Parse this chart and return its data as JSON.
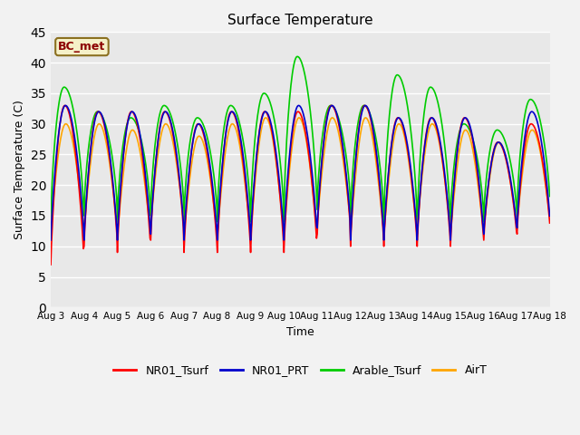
{
  "title": "Surface Temperature",
  "xlabel": "Time",
  "ylabel": "Surface Temperature (C)",
  "ylim": [
    0,
    45
  ],
  "yticks": [
    0,
    5,
    10,
    15,
    20,
    25,
    30,
    35,
    40,
    45
  ],
  "x_tick_labels": [
    "Aug 3",
    "Aug 4",
    "Aug 5",
    "Aug 6",
    "Aug 7",
    "Aug 8",
    "Aug 9",
    "Aug 10",
    "Aug 11",
    "Aug 12",
    "Aug 13",
    "Aug 14",
    "Aug 15",
    "Aug 16",
    "Aug 17",
    "Aug 18"
  ],
  "annotation_text": "BC_met",
  "annotation_color": "#8B0000",
  "annotation_bg": "#F5F0C8",
  "annotation_border": "#8B7020",
  "colors": {
    "NR01_Tsurf": "#FF0000",
    "NR01_PRT": "#0000CC",
    "Arable_Tsurf": "#00CC00",
    "AirT": "#FFA500"
  },
  "legend_labels": [
    "NR01_Tsurf",
    "NR01_PRT",
    "Arable_Tsurf",
    "AirT"
  ],
  "plot_bg_color": "#E8E8E8",
  "fig_bg_color": "#F2F2F2",
  "line_width": 1.2,
  "n_pts": 48,
  "n_days": 15,
  "day_peaks_nr01": [
    33,
    32,
    32,
    32,
    30,
    32,
    32,
    32,
    33,
    33,
    31,
    31,
    31,
    27,
    30
  ],
  "day_mins_nr01": [
    7,
    10,
    9,
    11,
    9,
    9,
    9,
    9,
    12,
    10,
    10,
    10,
    10,
    11,
    12
  ],
  "day_peaks_prt": [
    33,
    32,
    32,
    32,
    30,
    32,
    32,
    33,
    33,
    33,
    31,
    31,
    31,
    27,
    32
  ],
  "day_mins_prt": [
    11,
    11,
    11,
    12,
    11,
    11,
    11,
    11,
    13,
    11,
    11,
    11,
    11,
    12,
    13
  ],
  "day_peaks_arable": [
    36,
    32,
    31,
    33,
    31,
    33,
    35,
    41,
    33,
    33,
    38,
    36,
    30,
    29,
    34
  ],
  "day_mins_arable": [
    13,
    15,
    14,
    15,
    14,
    14,
    14,
    14,
    16,
    14,
    13,
    12,
    14,
    14,
    15
  ],
  "day_peaks_air": [
    30,
    30,
    29,
    30,
    28,
    30,
    31,
    31,
    31,
    31,
    30,
    30,
    29,
    27,
    29
  ],
  "day_mins_air": [
    13,
    13,
    12,
    14,
    12,
    12,
    12,
    12,
    14,
    12,
    12,
    13,
    12,
    13,
    14
  ],
  "peak_phase": 0.42,
  "sharpness": 2.5
}
